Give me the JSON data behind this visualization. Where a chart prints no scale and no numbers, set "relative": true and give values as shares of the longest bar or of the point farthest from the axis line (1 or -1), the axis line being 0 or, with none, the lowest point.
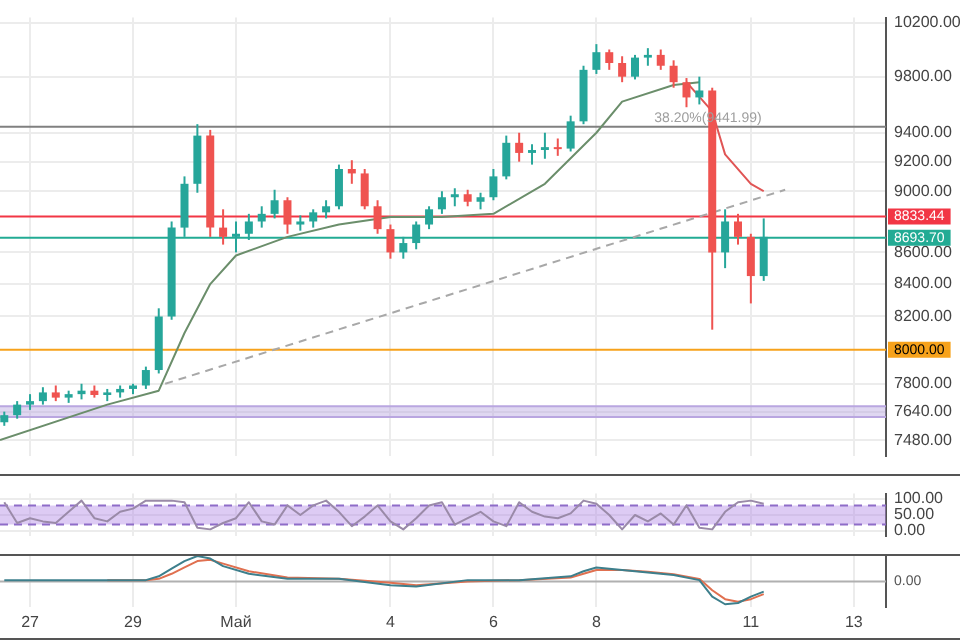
{
  "chart_data": [
    {
      "type": "candlestick",
      "log": true,
      "grid": true,
      "tick_labels": "y",
      "x": [
        "--04-26T12:00",
        "--04-26T18:00",
        "--04-27T00:00",
        "--04-27T06:00",
        "--04-27T12:00",
        "--04-27T18:00",
        "--04-28T00:00",
        "--04-28T06:00",
        "--04-28T12:00",
        "--04-28T18:00",
        "--04-29T00:00",
        "--04-29T06:00",
        "--04-29T12:00",
        "--04-29T18:00",
        "--04-30T00:00",
        "--04-30T06:00",
        "--04-30T12:00",
        "--04-30T18:00",
        "--05-01T00:00",
        "--05-01T06:00",
        "--05-01T12:00",
        "--05-01T18:00",
        "--05-02T00:00",
        "--05-02T06:00",
        "--05-02T12:00",
        "--05-02T18:00",
        "--05-03T00:00",
        "--05-03T06:00",
        "--05-03T12:00",
        "--05-03T18:00",
        "--05-04T00:00",
        "--05-04T06:00",
        "--05-04T12:00",
        "--05-04T18:00",
        "--05-05T00:00",
        "--05-05T06:00",
        "--05-05T12:00",
        "--05-05T18:00",
        "--05-06T00:00",
        "--05-06T06:00",
        "--05-06T12:00",
        "--05-06T18:00",
        "--05-07T00:00",
        "--05-07T06:00",
        "--05-07T12:00",
        "--05-07T18:00",
        "--05-08T00:00",
        "--05-08T06:00",
        "--05-08T12:00",
        "--05-08T18:00",
        "--05-09T00:00",
        "--05-09T06:00",
        "--05-09T12:00",
        "--05-09T18:00",
        "--05-10T00:00",
        "--05-10T06:00",
        "--05-10T12:00",
        "--05-10T18:00",
        "--05-11T00:00",
        "--05-11T06:00"
      ],
      "ohlc": [
        [
          7580,
          7640,
          7560,
          7620
        ],
        [
          7620,
          7700,
          7600,
          7680
        ],
        [
          7680,
          7740,
          7650,
          7700
        ],
        [
          7700,
          7780,
          7680,
          7750
        ],
        [
          7750,
          7790,
          7700,
          7720
        ],
        [
          7720,
          7760,
          7690,
          7740
        ],
        [
          7740,
          7800,
          7710,
          7760
        ],
        [
          7760,
          7790,
          7720,
          7735
        ],
        [
          7735,
          7770,
          7700,
          7750
        ],
        [
          7750,
          7790,
          7720,
          7770
        ],
        [
          7770,
          7800,
          7740,
          7790
        ],
        [
          7790,
          7900,
          7770,
          7880
        ],
        [
          7880,
          8250,
          7860,
          8200
        ],
        [
          8200,
          8800,
          8180,
          8760
        ],
        [
          8760,
          9100,
          8700,
          9050
        ],
        [
          9050,
          9460,
          8990,
          9380
        ],
        [
          9380,
          9420,
          8700,
          8760
        ],
        [
          8760,
          8880,
          8650,
          8700
        ],
        [
          8700,
          8800,
          8600,
          8720
        ],
        [
          8720,
          8850,
          8680,
          8800
        ],
        [
          8800,
          8900,
          8760,
          8850
        ],
        [
          8850,
          9010,
          8820,
          8940
        ],
        [
          8940,
          8960,
          8720,
          8780
        ],
        [
          8780,
          8840,
          8740,
          8800
        ],
        [
          8800,
          8880,
          8760,
          8860
        ],
        [
          8860,
          8940,
          8820,
          8900
        ],
        [
          8900,
          9180,
          8880,
          9150
        ],
        [
          9150,
          9210,
          9050,
          9120
        ],
        [
          9120,
          9150,
          8880,
          8900
        ],
        [
          8900,
          8940,
          8720,
          8750
        ],
        [
          8750,
          8780,
          8560,
          8600
        ],
        [
          8600,
          8700,
          8560,
          8660
        ],
        [
          8660,
          8800,
          8620,
          8780
        ],
        [
          8780,
          8900,
          8750,
          8880
        ],
        [
          8880,
          9000,
          8850,
          8960
        ],
        [
          8960,
          9020,
          8900,
          8980
        ],
        [
          8980,
          9010,
          8900,
          8930
        ],
        [
          8930,
          8990,
          8880,
          8960
        ],
        [
          8960,
          9150,
          8940,
          9100
        ],
        [
          9100,
          9380,
          9080,
          9330
        ],
        [
          9330,
          9400,
          9200,
          9260
        ],
        [
          9260,
          9320,
          9180,
          9280
        ],
        [
          9280,
          9400,
          9220,
          9300
        ],
        [
          9300,
          9360,
          9240,
          9290
        ],
        [
          9290,
          9520,
          9270,
          9480
        ],
        [
          9480,
          9880,
          9460,
          9850
        ],
        [
          9850,
          10040,
          9820,
          9980
        ],
        [
          9980,
          10000,
          9850,
          9900
        ],
        [
          9900,
          9950,
          9760,
          9800
        ],
        [
          9800,
          9960,
          9780,
          9940
        ],
        [
          9940,
          10010,
          9880,
          9960
        ],
        [
          9960,
          10000,
          9850,
          9880
        ],
        [
          9880,
          9920,
          9720,
          9760
        ],
        [
          9760,
          9790,
          9580,
          9650
        ],
        [
          9650,
          9800,
          9600,
          9700
        ],
        [
          9700,
          9720,
          8120,
          8600
        ],
        [
          8600,
          8880,
          8500,
          8800
        ],
        [
          8800,
          8850,
          8650,
          8700
        ],
        [
          8700,
          8720,
          8280,
          8450
        ],
        [
          8450,
          8820,
          8420,
          8700
        ]
      ],
      "series": [
        {
          "type": "line",
          "color": "#6b8e6b",
          "x": [
            "--04-26T10:00",
            "--04-28T12:00",
            "--04-29T12:00",
            "--04-30T00:00",
            "--04-30T12:00",
            "--05-01T00:00",
            "--05-02T00:00",
            "--05-03T00:00",
            "--05-04T00:00",
            "--05-05T00:00",
            "--05-06T00:00",
            "--05-07T00:00",
            "--05-08T00:00",
            "--05-08T12:00",
            "--05-09T12:00",
            "--05-10T00:00"
          ],
          "values": [
            7480,
            7680,
            7760,
            8100,
            8400,
            8580,
            8700,
            8780,
            8830,
            8830,
            8850,
            9050,
            9400,
            9620,
            9740,
            9760
          ]
        },
        {
          "type": "line",
          "color": "#e05555",
          "x": [
            "--05-09T18:00",
            "--05-10T06:00",
            "--05-10T12:00",
            "--05-11T00:00",
            "--05-11T06:00"
          ],
          "values": [
            9760,
            9550,
            9250,
            9050,
            9000
          ]
        },
        {
          "type": "line",
          "color": "#a8a8a8",
          "line_style": "dashed",
          "x": [
            "--04-29T15:00",
            "--05-11T16:00"
          ],
          "values": [
            7800,
            9010
          ]
        }
      ],
      "xlim": [
        "--04-26T10:00",
        "--05-13T15:00"
      ],
      "xticks": [
        {
          "value": "--04-27",
          "label": null
        },
        {
          "value": "--04-29",
          "label": null
        },
        {
          "value": "--05-01",
          "label": null
        },
        {
          "value": "--05-04",
          "label": null
        },
        {
          "value": "--05-06",
          "label": null
        },
        {
          "value": "--05-08",
          "label": null
        },
        {
          "value": "--05-11",
          "label": null
        },
        {
          "value": "--05-13",
          "label": null
        }
      ],
      "ylim": [
        7390,
        10240
      ],
      "yticks": [
        {
          "value": 7480,
          "label": "7480.00"
        },
        {
          "value": 7640,
          "label": "7640.00"
        },
        {
          "value": 7800,
          "label": "7800.00"
        },
        {
          "value": 8200,
          "label": "8200.00"
        },
        {
          "value": 8400,
          "label": "8400.00"
        },
        {
          "value": 8600,
          "label": "8600.00"
        },
        {
          "value": 9000,
          "label": "9000.00"
        },
        {
          "value": 9200,
          "label": "9200.00"
        },
        {
          "value": 9400,
          "label": "9400.00"
        },
        {
          "value": 9800,
          "label": "9800.00"
        },
        {
          "value": 10200,
          "label": "10200.00"
        }
      ],
      "ref_lines": [
        {
          "axis": "y",
          "value": 9441.99,
          "color": "#808080"
        },
        {
          "axis": "y",
          "value": 8833.44,
          "label": "8833.44",
          "color": "#f23645"
        },
        {
          "axis": "y",
          "value": 8693.7,
          "label": "8693.70",
          "color": "#22ab94"
        },
        {
          "axis": "y",
          "value": 8000,
          "label": "8000.00",
          "color": "#f7a21b"
        },
        {
          "axis": "y",
          "value": 7670,
          "color": "#b9a6e0"
        },
        {
          "axis": "y",
          "value": 7610,
          "color": "#b9a6e0"
        }
      ],
      "bands": [
        {
          "axis": "y",
          "from": 7610,
          "to": 7670,
          "color": "#b9a6e0"
        }
      ],
      "annotations": [
        {
          "text": "38.20%(9441.99)",
          "x": "--05-09T03:00",
          "y": 9441.99
        }
      ]
    },
    {
      "type": "line",
      "grid": true,
      "tick_labels": "y",
      "x": [
        "--04-26T12:00",
        "--04-26T18:00",
        "--04-27T00:00",
        "--04-27T06:00",
        "--04-27T12:00",
        "--04-27T18:00",
        "--04-28T00:00",
        "--04-28T06:00",
        "--04-28T12:00",
        "--04-28T18:00",
        "--04-29T00:00",
        "--04-29T06:00",
        "--04-29T12:00",
        "--04-29T18:00",
        "--04-30T00:00",
        "--04-30T06:00",
        "--04-30T12:00",
        "--04-30T18:00",
        "--05-01T00:00",
        "--05-01T06:00",
        "--05-01T12:00",
        "--05-01T18:00",
        "--05-02T00:00",
        "--05-02T06:00",
        "--05-02T12:00",
        "--05-02T18:00",
        "--05-03T00:00",
        "--05-03T06:00",
        "--05-03T12:00",
        "--05-03T18:00",
        "--05-04T00:00",
        "--05-04T06:00",
        "--05-04T12:00",
        "--05-04T18:00",
        "--05-05T00:00",
        "--05-05T06:00",
        "--05-05T12:00",
        "--05-05T18:00",
        "--05-06T00:00",
        "--05-06T06:00",
        "--05-06T12:00",
        "--05-06T18:00",
        "--05-07T00:00",
        "--05-07T06:00",
        "--05-07T12:00",
        "--05-07T18:00",
        "--05-08T00:00",
        "--05-08T06:00",
        "--05-08T12:00",
        "--05-08T18:00",
        "--05-09T00:00",
        "--05-09T06:00",
        "--05-09T12:00",
        "--05-09T18:00",
        "--05-10T00:00",
        "--05-10T06:00",
        "--05-10T12:00",
        "--05-10T18:00",
        "--05-11T00:00",
        "--05-11T06:00"
      ],
      "series": [
        {
          "color": "#9a8aa8",
          "values": [
            90,
            25,
            40,
            30,
            25,
            60,
            95,
            40,
            30,
            60,
            70,
            95,
            95,
            95,
            90,
            10,
            5,
            25,
            40,
            90,
            30,
            20,
            80,
            50,
            80,
            95,
            60,
            15,
            45,
            80,
            30,
            5,
            40,
            80,
            90,
            20,
            40,
            60,
            30,
            15,
            90,
            60,
            45,
            40,
            55,
            95,
            85,
            50,
            5,
            50,
            30,
            55,
            20,
            80,
            10,
            5,
            60,
            90,
            95,
            85
          ]
        }
      ],
      "xlim": [
        "--04-26T10:00",
        "--05-13T15:00"
      ],
      "xticks": [
        {
          "value": "--04-27",
          "label": null
        },
        {
          "value": "--04-29",
          "label": null
        },
        {
          "value": "--05-01",
          "label": null
        },
        {
          "value": "--05-04",
          "label": null
        },
        {
          "value": "--05-06",
          "label": null
        },
        {
          "value": "--05-08",
          "label": null
        },
        {
          "value": "--05-11",
          "label": null
        },
        {
          "value": "--05-13",
          "label": null
        }
      ],
      "ylim": [
        -17,
        117
      ],
      "yticks": [
        {
          "value": 0,
          "label": "0.00"
        },
        {
          "value": 50,
          "label": "50.00"
        },
        {
          "value": 100,
          "label": "100.00"
        }
      ],
      "bands": [
        {
          "axis": "y",
          "from": 20,
          "to": 80,
          "color": "#b48be6"
        }
      ],
      "ref_lines": [
        {
          "axis": "y",
          "value": 80,
          "color": "#8e6cc8",
          "line_style": "dashed"
        },
        {
          "axis": "y",
          "value": 20,
          "color": "#8e6cc8",
          "line_style": "dashed"
        }
      ]
    },
    {
      "type": "line",
      "relative": true,
      "grid": "x",
      "tick_labels": "x",
      "x": [
        "--04-26T12:00",
        "--04-27T12:00",
        "--04-28T12:00",
        "--04-29T06:00",
        "--04-29T12:00",
        "--04-29T18:00",
        "--04-30T00:00",
        "--04-30T06:00",
        "--04-30T12:00",
        "--04-30T18:00",
        "--05-01T06:00",
        "--05-02T00:00",
        "--05-03T00:00",
        "--05-04T00:00",
        "--05-04T12:00",
        "--05-05T12:00",
        "--05-06T12:00",
        "--05-07T12:00",
        "--05-07T18:00",
        "--05-08T00:00",
        "--05-08T12:00",
        "--05-09T00:00",
        "--05-09T12:00",
        "--05-10T00:00",
        "--05-10T06:00",
        "--05-10T12:00",
        "--05-10T18:00",
        "--05-11T00:00",
        "--05-11T06:00"
      ],
      "series": [
        {
          "color": "#3d7f8c",
          "values": [
            0.05,
            0.05,
            0.05,
            0.05,
            0.2,
            0.5,
            0.8,
            1,
            0.9,
            0.6,
            0.3,
            0.1,
            0.1,
            -0.15,
            -0.2,
            0.05,
            0.05,
            0.2,
            0.4,
            0.55,
            0.45,
            0.35,
            0.25,
            0.05,
            -0.6,
            -0.9,
            -0.85,
            -0.6,
            -0.4
          ]
        },
        {
          "color": "#e07050",
          "values": [
            null,
            null,
            0.05,
            0.05,
            0.1,
            0.3,
            0.55,
            0.8,
            0.85,
            0.7,
            0.4,
            0.15,
            0.1,
            -0.05,
            -0.15,
            0,
            0.05,
            0.15,
            0.3,
            0.45,
            0.45,
            0.38,
            0.28,
            0.1,
            -0.35,
            -0.7,
            -0.8,
            -0.7,
            -0.5
          ]
        }
      ],
      "xlim": [
        "--04-26T10:00",
        "--05-13T15:00"
      ],
      "xticks": [
        {
          "value": "--04-27",
          "label": "27"
        },
        {
          "value": "--04-29",
          "label": "29"
        },
        {
          "value": "--05-01",
          "label": "Май"
        },
        {
          "value": "--05-04",
          "label": "4"
        },
        {
          "value": "--05-06",
          "label": "6"
        },
        {
          "value": "--05-08",
          "label": "8"
        },
        {
          "value": "--05-11",
          "label": "11"
        },
        {
          "value": "--05-13",
          "label": "13"
        }
      ],
      "annotations": [
        "0.00"
      ]
    }
  ]
}
